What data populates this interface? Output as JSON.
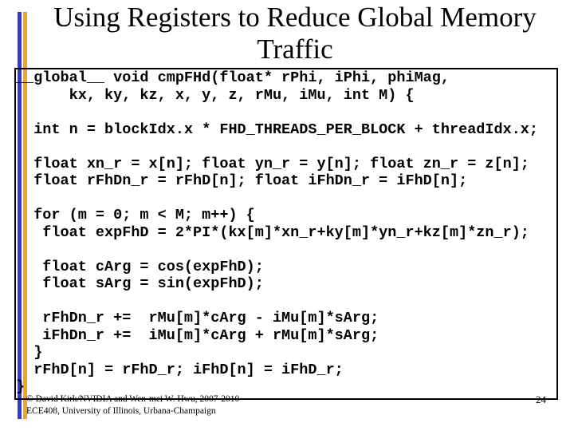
{
  "slide": {
    "title_line1": "Using Registers to Reduce Global Memory",
    "title_line2": "Traffic",
    "code": "__global__ void cmpFHd(float* rPhi, iPhi, phiMag,\n      kx, ky, kz, x, y, z, rMu, iMu, int M) {\n\n  int n = blockIdx.x * FHD_THREADS_PER_BLOCK + threadIdx.x;\n\n  float xn_r = x[n]; float yn_r = y[n]; float zn_r = z[n];\n  float rFhDn_r = rFhD[n]; float iFhDn_r = iFhD[n];\n\n  for (m = 0; m < M; m++) {\n   float expFhD = 2*PI*(kx[m]*xn_r+ky[m]*yn_r+kz[m]*zn_r);\n\n   float cArg = cos(expFhD);\n   float sArg = sin(expFhD);\n\n   rFhDn_r +=  rMu[m]*cArg - iMu[m]*sArg;\n   iFhDn_r +=  iMu[m]*cArg + rMu[m]*sArg;\n  }\n  rFhD[n] = rFhD_r; iFhD[n] = iFhD_r;\n}",
    "footer_line1": "© David Kirk/NVIDIA and Wen-mei W. Hwu, 2007-2010",
    "footer_line2": "ECE408, University of Illinois, Urbana-Champaign",
    "page_number": "24",
    "colors": {
      "accent_blue": "#3b3bad",
      "accent_orange": "#f0a42c"
    }
  }
}
